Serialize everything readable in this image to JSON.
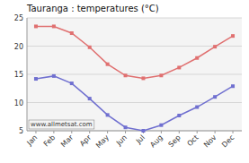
{
  "chart_data": {
    "type": "line",
    "title": "Tauranga : temperatures (°C)",
    "categories": [
      "Jan",
      "Feb",
      "Mar",
      "Apr",
      "May",
      "Jun",
      "Jul",
      "Aug",
      "Sep",
      "Oct",
      "Nov",
      "Dec"
    ],
    "series": [
      {
        "color": "#e07070",
        "marker": "square",
        "values": [
          23.5,
          23.5,
          22.3,
          19.8,
          16.8,
          14.8,
          14.3,
          14.8,
          16.2,
          17.9,
          19.9,
          21.8
        ]
      },
      {
        "color": "#7070d0",
        "marker": "square",
        "values": [
          14.2,
          14.7,
          13.4,
          10.7,
          7.8,
          5.6,
          5.0,
          6.0,
          7.7,
          9.2,
          11.0,
          12.9
        ]
      }
    ],
    "ylim": [
      5,
      25
    ],
    "yticks": [
      5,
      10,
      15,
      20,
      25
    ],
    "grid": true,
    "annotations": [
      "www.allmetsat.com"
    ]
  }
}
